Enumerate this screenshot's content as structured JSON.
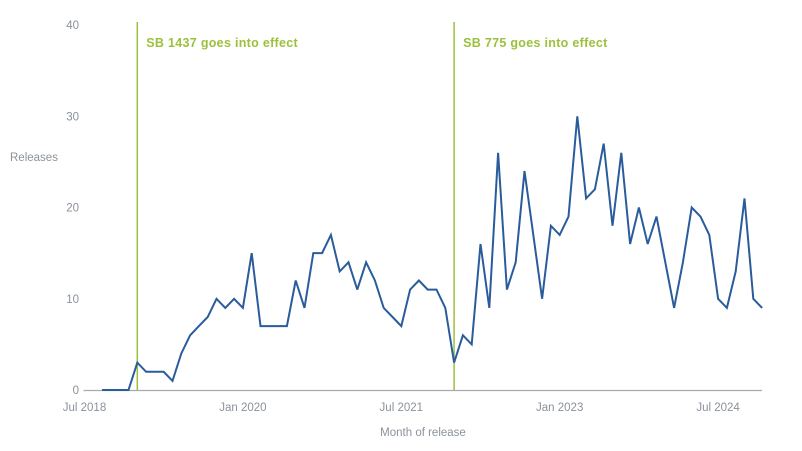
{
  "chart_data": {
    "type": "line",
    "title": "",
    "ylabel": "Releases",
    "xlabel": "Month of release",
    "ylim": [
      0,
      40
    ],
    "grid": false,
    "legend": "none",
    "y_ticks": [
      0,
      10,
      20,
      30,
      40
    ],
    "x_ticks": [
      {
        "month": "2018-07",
        "label": "Jul 2018"
      },
      {
        "month": "2020-01",
        "label": "Jan 2020"
      },
      {
        "month": "2021-07",
        "label": "Jul 2021"
      },
      {
        "month": "2023-01",
        "label": "Jan 2023"
      },
      {
        "month": "2024-07",
        "label": "Jul 2024"
      }
    ],
    "colors": {
      "line": "#2a5c9b",
      "annotation": "#9bc13c",
      "axis": "#a8abae",
      "text": "#8a929b"
    },
    "annotations": [
      {
        "label": "SB 1437 goes into effect",
        "month": "2019-01"
      },
      {
        "label": "SB 775 goes into effect",
        "month": "2022-01"
      }
    ],
    "series": [
      {
        "name": "Releases",
        "x": [
          "2018-09",
          "2018-10",
          "2018-11",
          "2018-12",
          "2019-01",
          "2019-02",
          "2019-03",
          "2019-04",
          "2019-05",
          "2019-06",
          "2019-07",
          "2019-08",
          "2019-09",
          "2019-10",
          "2019-11",
          "2019-12",
          "2020-01",
          "2020-02",
          "2020-03",
          "2020-04",
          "2020-05",
          "2020-06",
          "2020-07",
          "2020-08",
          "2020-09",
          "2020-10",
          "2020-11",
          "2020-12",
          "2021-01",
          "2021-02",
          "2021-03",
          "2021-04",
          "2021-05",
          "2021-06",
          "2021-07",
          "2021-08",
          "2021-09",
          "2021-10",
          "2021-11",
          "2021-12",
          "2022-01",
          "2022-02",
          "2022-03",
          "2022-04",
          "2022-05",
          "2022-06",
          "2022-07",
          "2022-08",
          "2022-09",
          "2022-10",
          "2022-11",
          "2022-12",
          "2023-01",
          "2023-02",
          "2023-03",
          "2023-04",
          "2023-05",
          "2023-06",
          "2023-07",
          "2023-08",
          "2023-09",
          "2023-10",
          "2023-11",
          "2023-12",
          "2024-01",
          "2024-02",
          "2024-03",
          "2024-04",
          "2024-05",
          "2024-06",
          "2024-07",
          "2024-08",
          "2024-09",
          "2024-10",
          "2024-11",
          "2024-12"
        ],
        "values": [
          0,
          0,
          0,
          0,
          3,
          2,
          2,
          2,
          1,
          4,
          6,
          7,
          8,
          10,
          9,
          10,
          9,
          15,
          7,
          7,
          7,
          7,
          12,
          9,
          15,
          15,
          17,
          13,
          14,
          11,
          14,
          12,
          9,
          8,
          7,
          11,
          12,
          11,
          11,
          9,
          3,
          6,
          5,
          16,
          9,
          26,
          11,
          14,
          24,
          17,
          10,
          18,
          17,
          19,
          30,
          21,
          22,
          27,
          18,
          26,
          16,
          20,
          16,
          19,
          14,
          9,
          14,
          20,
          19,
          17,
          10,
          9,
          13,
          21,
          10,
          9
        ]
      }
    ]
  }
}
